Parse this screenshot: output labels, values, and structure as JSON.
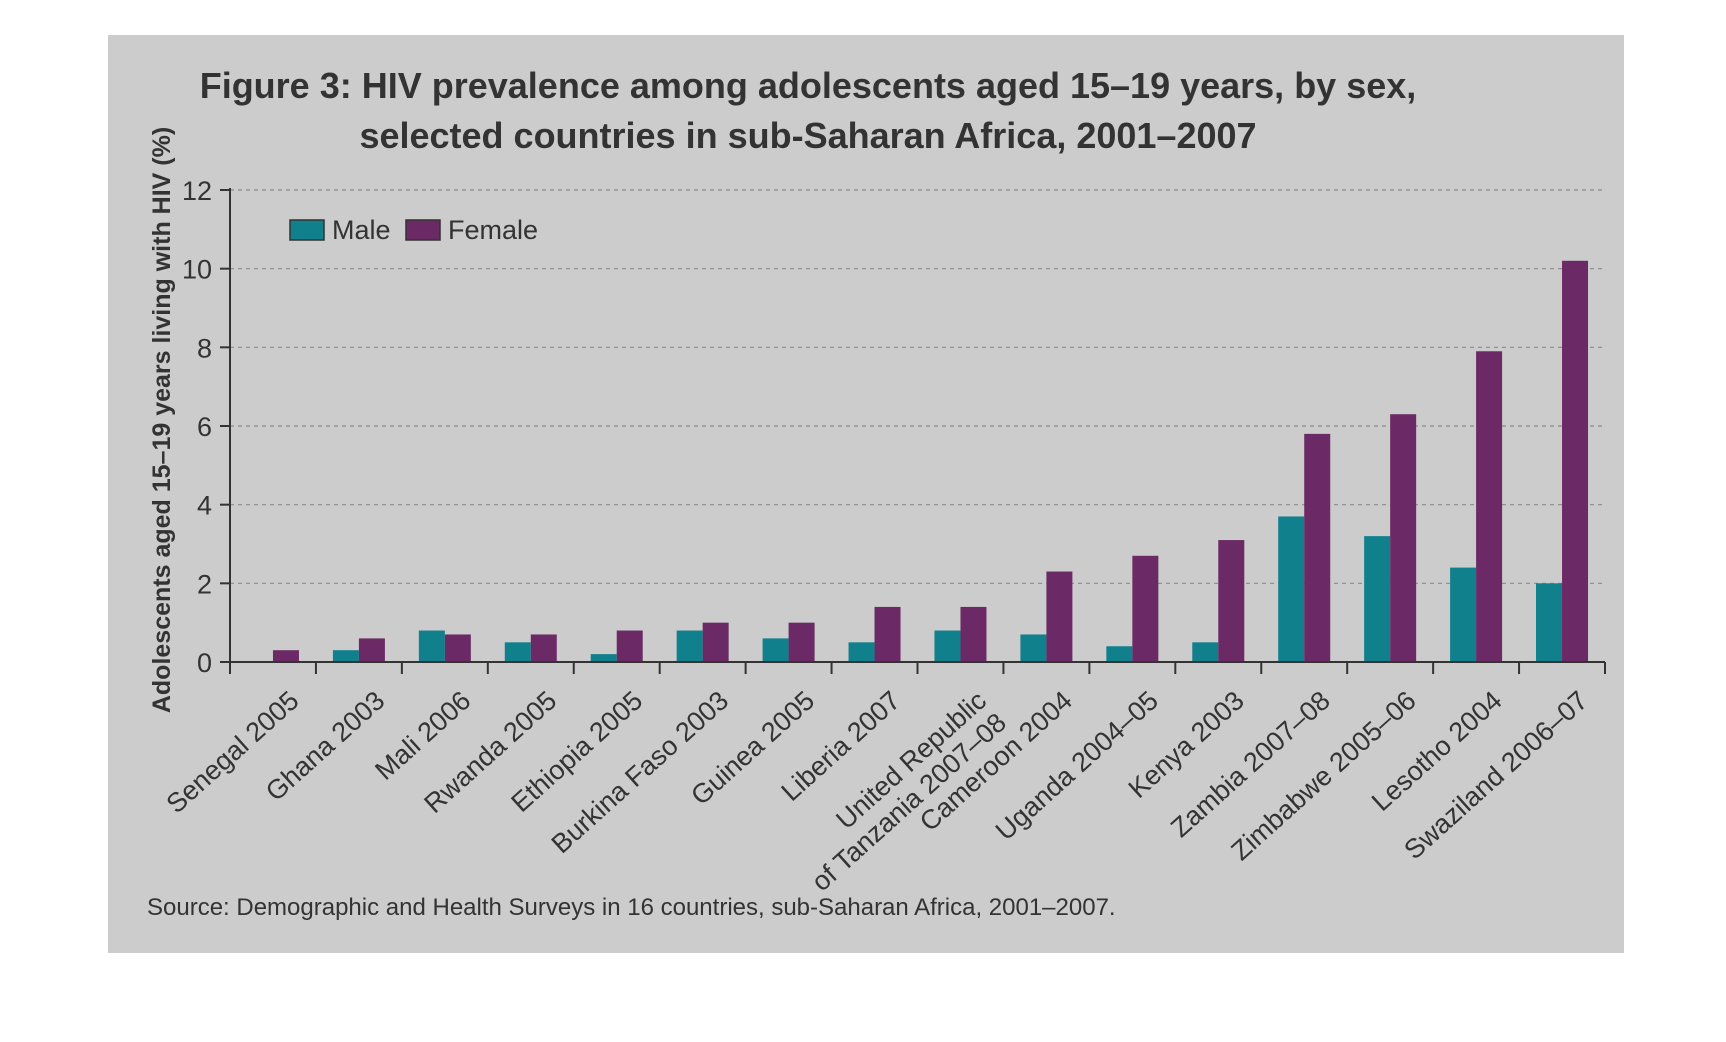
{
  "chart_data": {
    "type": "bar",
    "title": [
      "Figure 3: HIV prevalence among adolescents aged 15–19 years, by sex,",
      "selected countries in sub-Saharan Africa, 2001–2007"
    ],
    "ylabel": "Adolescents aged 15–19 years living with HIV (%)",
    "xlabel": "",
    "ylim": [
      0,
      12
    ],
    "yticks": [
      0,
      2,
      4,
      6,
      8,
      10,
      12
    ],
    "grid": "horizontal-dashed",
    "legend_position": "top-left",
    "categories": [
      [
        "Senegal 2005"
      ],
      [
        "Ghana 2003"
      ],
      [
        "Mali 2006"
      ],
      [
        "Rwanda 2005"
      ],
      [
        "Ethiopia 2005"
      ],
      [
        "Burkina Faso 2003"
      ],
      [
        "Guinea 2005"
      ],
      [
        "Liberia 2007"
      ],
      [
        "United Republic",
        "of Tanzania 2007–08"
      ],
      [
        "Cameroon 2004"
      ],
      [
        "Uganda 2004–05"
      ],
      [
        "Kenya 2003"
      ],
      [
        "Zambia 2007–08"
      ],
      [
        "Zimbabwe 2005–06"
      ],
      [
        "Lesotho 2004"
      ],
      [
        "Swaziland 2006–07"
      ]
    ],
    "series": [
      {
        "name": "Male",
        "color": "#0f808c",
        "values": [
          0.0,
          0.3,
          0.8,
          0.5,
          0.2,
          0.8,
          0.6,
          0.5,
          0.8,
          0.7,
          0.4,
          0.5,
          3.7,
          3.2,
          2.4,
          2.0
        ]
      },
      {
        "name": "Female",
        "color": "#6b2a66",
        "values": [
          0.3,
          0.6,
          0.7,
          0.7,
          0.8,
          1.0,
          1.0,
          1.4,
          1.4,
          2.3,
          2.7,
          3.1,
          5.8,
          6.3,
          7.9,
          10.2
        ]
      }
    ],
    "source": "Source: Demographic and Health Surveys in 16 countries, sub-Saharan Africa, 2001–2007."
  }
}
